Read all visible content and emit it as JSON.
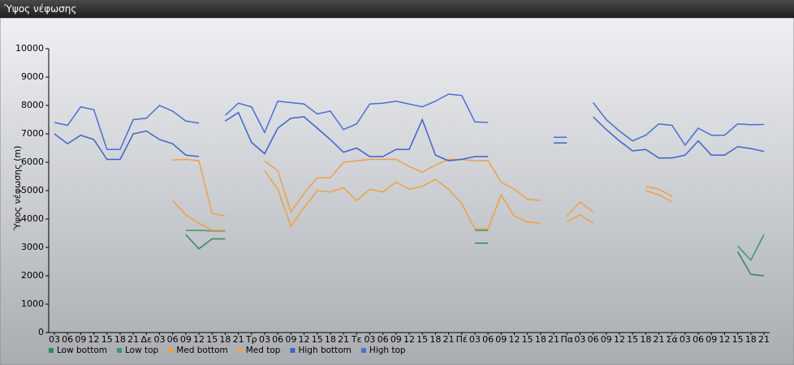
{
  "chart_data": {
    "type": "line",
    "title": "Ύψος νέφωσης",
    "y_label": "Ύψος νέφωσης (m)",
    "categories": [
      "03",
      "06",
      "09",
      "12",
      "15",
      "18",
      "21",
      "Δε",
      "03",
      "06",
      "09",
      "12",
      "15",
      "18",
      "21",
      "Τρ",
      "03",
      "06",
      "09",
      "12",
      "15",
      "18",
      "21",
      "Τε",
      "03",
      "06",
      "09",
      "12",
      "15",
      "18",
      "21",
      "Πέ",
      "03",
      "06",
      "09",
      "12",
      "15",
      "18",
      "21",
      "Πα",
      "03",
      "06",
      "09",
      "12",
      "15",
      "18",
      "21",
      "Σά",
      "03",
      "06",
      "09",
      "12",
      "15",
      "18",
      "21"
    ],
    "ylim": [
      0,
      10000
    ],
    "yticks": [
      0,
      1000,
      2000,
      3000,
      4000,
      5000,
      6000,
      7000,
      8000,
      9000,
      10000
    ],
    "series": [
      {
        "name": "Low bottom",
        "color": "#2e8b57",
        "values": [
          null,
          null,
          null,
          null,
          null,
          null,
          null,
          null,
          null,
          null,
          3450,
          2950,
          3300,
          3300,
          null,
          null,
          null,
          null,
          null,
          null,
          null,
          null,
          null,
          null,
          null,
          null,
          null,
          null,
          null,
          null,
          null,
          null,
          3150,
          3150,
          null,
          null,
          null,
          null,
          null,
          null,
          null,
          null,
          null,
          null,
          null,
          null,
          null,
          null,
          null,
          null,
          null,
          null,
          2850,
          2050,
          2000
        ]
      },
      {
        "name": "Low top",
        "color": "#3a9a66",
        "values": [
          null,
          null,
          null,
          null,
          null,
          null,
          null,
          null,
          null,
          null,
          3600,
          3600,
          3580,
          3580,
          null,
          null,
          null,
          null,
          null,
          null,
          null,
          null,
          null,
          null,
          null,
          null,
          null,
          null,
          null,
          null,
          null,
          null,
          3600,
          3600,
          null,
          null,
          null,
          null,
          null,
          null,
          null,
          null,
          null,
          null,
          null,
          null,
          null,
          null,
          null,
          null,
          null,
          null,
          3050,
          2550,
          3450
        ]
      },
      {
        "name": "Med bottom",
        "color": "#f0a040",
        "values": [
          null,
          null,
          null,
          null,
          null,
          null,
          null,
          null,
          null,
          4650,
          4150,
          3850,
          3600,
          3600,
          null,
          null,
          5700,
          5050,
          3750,
          4400,
          5000,
          4950,
          5100,
          4650,
          5050,
          4950,
          5300,
          5050,
          5150,
          5400,
          5050,
          4550,
          3650,
          3650,
          4850,
          4100,
          3900,
          3850,
          null,
          3900,
          4150,
          3850,
          null,
          null,
          null,
          5000,
          4850,
          4600,
          null,
          null,
          null,
          null,
          null,
          null,
          null
        ]
      },
      {
        "name": "Med top",
        "color": "#eea04a",
        "values": [
          null,
          null,
          null,
          null,
          null,
          null,
          null,
          null,
          null,
          6080,
          6100,
          6050,
          4200,
          4100,
          null,
          null,
          6050,
          5700,
          4250,
          4900,
          5450,
          5450,
          6000,
          6050,
          6100,
          6100,
          6100,
          5850,
          5650,
          5900,
          6100,
          6100,
          6050,
          6050,
          5300,
          5050,
          4700,
          4650,
          null,
          4100,
          4600,
          4250,
          null,
          null,
          null,
          5150,
          5050,
          4800,
          null,
          null,
          null,
          null,
          null,
          null,
          null
        ]
      },
      {
        "name": "High bottom",
        "color": "#3f62c8",
        "values": [
          7000,
          6650,
          6950,
          6800,
          6100,
          6100,
          7000,
          7100,
          6800,
          6650,
          6250,
          6200,
          null,
          7450,
          7750,
          6700,
          6300,
          7200,
          7550,
          7600,
          7200,
          6800,
          6350,
          6500,
          6200,
          6200,
          6450,
          6450,
          7500,
          6250,
          6050,
          6100,
          6200,
          6200,
          null,
          null,
          null,
          null,
          6680,
          6680,
          null,
          7600,
          7150,
          6750,
          6400,
          6450,
          6150,
          6150,
          6250,
          6750,
          6250,
          6250,
          6550,
          6480,
          6380
        ]
      },
      {
        "name": "High top",
        "color": "#4a6fd4",
        "values": [
          7400,
          7300,
          7950,
          7850,
          6450,
          6450,
          7500,
          7550,
          8000,
          7800,
          7450,
          7380,
          null,
          7650,
          8080,
          7950,
          7050,
          8150,
          8100,
          8050,
          7700,
          7800,
          7150,
          7350,
          8050,
          8080,
          8150,
          8050,
          7950,
          8150,
          8400,
          8350,
          7420,
          7400,
          null,
          null,
          null,
          null,
          6880,
          6880,
          null,
          8100,
          7500,
          7100,
          6750,
          6950,
          7350,
          7300,
          6600,
          7200,
          6950,
          6950,
          7350,
          7320,
          7330
        ]
      }
    ]
  }
}
